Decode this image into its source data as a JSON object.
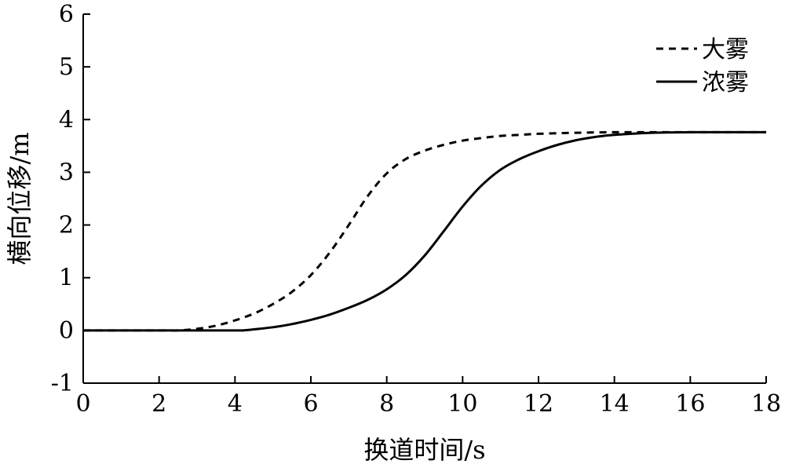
{
  "chart_data": {
    "type": "line",
    "xlabel": "换道时间/s",
    "ylabel": "横向位移/m",
    "xlim": [
      0,
      18
    ],
    "ylim": [
      -1,
      6
    ],
    "xticks": [
      0,
      2,
      4,
      6,
      8,
      10,
      12,
      14,
      16,
      18
    ],
    "yticks": [
      -1,
      0,
      1,
      2,
      3,
      4,
      5,
      6
    ],
    "grid": false,
    "legend": "top-right",
    "series": [
      {
        "name": "大雾",
        "style": "dashed",
        "color": "#000000",
        "x": [
          0,
          2,
          2.5,
          3,
          3.5,
          4,
          4.5,
          5,
          5.5,
          6,
          6.5,
          7,
          7.5,
          8,
          8.5,
          9,
          9.5,
          10,
          10.5,
          11,
          11.5,
          12,
          13,
          14,
          15,
          16,
          17,
          18
        ],
        "y": [
          0,
          0,
          0,
          0.03,
          0.09,
          0.19,
          0.32,
          0.5,
          0.73,
          1.05,
          1.48,
          2.0,
          2.55,
          2.98,
          3.25,
          3.41,
          3.52,
          3.6,
          3.65,
          3.69,
          3.71,
          3.73,
          3.75,
          3.76,
          3.76,
          3.76,
          3.76,
          3.76
        ]
      },
      {
        "name": "浓雾",
        "style": "solid",
        "color": "#000000",
        "x": [
          0,
          2,
          4,
          4.2,
          4.5,
          5,
          5.5,
          6,
          6.5,
          7,
          7.5,
          8,
          8.5,
          9,
          9.5,
          10,
          10.5,
          11,
          11.5,
          12,
          12.5,
          13,
          13.5,
          14,
          15,
          16,
          17,
          18
        ],
        "y": [
          0,
          0,
          0,
          0,
          0.02,
          0.06,
          0.12,
          0.2,
          0.3,
          0.43,
          0.58,
          0.78,
          1.05,
          1.42,
          1.88,
          2.35,
          2.75,
          3.05,
          3.25,
          3.4,
          3.52,
          3.61,
          3.67,
          3.71,
          3.75,
          3.76,
          3.76,
          3.76
        ]
      }
    ]
  }
}
